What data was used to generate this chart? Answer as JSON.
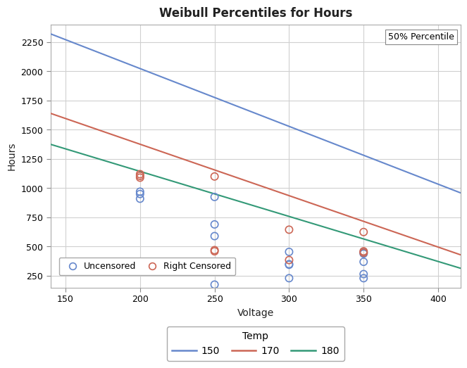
{
  "title": "Weibull Percentiles for Hours",
  "xlabel": "Voltage",
  "ylabel": "Hours",
  "xlim": [
    140,
    415
  ],
  "ylim_bottom": 150,
  "ylim_top": 2400,
  "yticks": [
    250,
    500,
    750,
    1000,
    1250,
    1500,
    1750,
    2000,
    2250
  ],
  "xticks": [
    150,
    200,
    250,
    300,
    350,
    400
  ],
  "background_color": "#ffffff",
  "plot_bg_color": "#ffffff",
  "grid_color": "#d0d0d0",
  "annotation_box": "50% Percentile",
  "lines": [
    {
      "label": "150",
      "color": "#6688cc",
      "x": [
        140,
        415
      ],
      "y": [
        2320,
        960
      ]
    },
    {
      "label": "170",
      "color": "#cc6655",
      "x": [
        140,
        415
      ],
      "y": [
        1640,
        430
      ]
    },
    {
      "label": "180",
      "color": "#339977",
      "x": [
        140,
        415
      ],
      "y": [
        1375,
        315
      ]
    }
  ],
  "uncensored_points": {
    "color": "#6688cc",
    "points": [
      [
        200,
        970
      ],
      [
        200,
        950
      ],
      [
        200,
        910
      ],
      [
        250,
        925
      ],
      [
        250,
        690
      ],
      [
        250,
        590
      ],
      [
        250,
        340
      ],
      [
        250,
        175
      ],
      [
        300,
        455
      ],
      [
        300,
        350
      ],
      [
        300,
        345
      ],
      [
        300,
        230
      ],
      [
        350,
        450
      ],
      [
        350,
        440
      ],
      [
        350,
        370
      ],
      [
        350,
        265
      ],
      [
        350,
        230
      ]
    ]
  },
  "censored_points": {
    "color": "#cc6655",
    "points": [
      [
        200,
        1120
      ],
      [
        200,
        1105
      ],
      [
        200,
        1090
      ],
      [
        250,
        1100
      ],
      [
        250,
        470
      ],
      [
        250,
        460
      ],
      [
        300,
        645
      ],
      [
        300,
        385
      ],
      [
        350,
        625
      ],
      [
        350,
        460
      ],
      [
        350,
        448
      ]
    ]
  }
}
